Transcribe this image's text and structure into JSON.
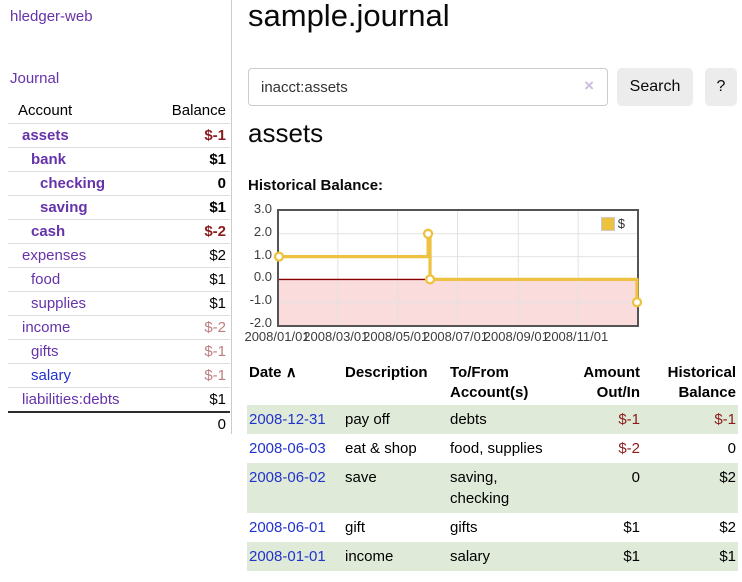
{
  "app": {
    "name": "hledger-web",
    "nav_journal": "Journal"
  },
  "sidebar": {
    "columns": {
      "account": "Account",
      "balance": "Balance"
    },
    "accounts": [
      {
        "name": "assets",
        "balance": "$-1",
        "indent": 1,
        "bold": true,
        "balance_style": "neg-strong",
        "link_style": ""
      },
      {
        "name": "bank",
        "balance": "$1",
        "indent": 2,
        "bold": true,
        "balance_style": "",
        "link_style": ""
      },
      {
        "name": "checking",
        "balance": "0",
        "indent": 3,
        "bold": true,
        "balance_style": "",
        "link_style": ""
      },
      {
        "name": "saving",
        "balance": "$1",
        "indent": 3,
        "bold": true,
        "balance_style": "",
        "link_style": ""
      },
      {
        "name": "cash",
        "balance": "$-2",
        "indent": 2,
        "bold": true,
        "balance_style": "neg-strong",
        "link_style": ""
      },
      {
        "name": "expenses",
        "balance": "$2",
        "indent": 1,
        "bold": false,
        "balance_style": "",
        "link_style": ""
      },
      {
        "name": "food",
        "balance": "$1",
        "indent": 2,
        "bold": false,
        "balance_style": "",
        "link_style": ""
      },
      {
        "name": "supplies",
        "balance": "$1",
        "indent": 2,
        "bold": false,
        "balance_style": "",
        "link_style": ""
      },
      {
        "name": "income",
        "balance": "$-2",
        "indent": 1,
        "bold": false,
        "balance_style": "neg-soft",
        "link_style": ""
      },
      {
        "name": "gifts",
        "balance": "$-1",
        "indent": 2,
        "bold": false,
        "balance_style": "neg-soft",
        "link_style": ""
      },
      {
        "name": "salary",
        "balance": "$-1",
        "indent": 2,
        "bold": false,
        "balance_style": "neg-soft",
        "link_style": "blue"
      },
      {
        "name": "liabilities:debts",
        "balance": "$1",
        "indent": 1,
        "bold": false,
        "balance_style": "",
        "link_style": ""
      }
    ],
    "total": "0"
  },
  "header": {
    "title": "sample.journal"
  },
  "search": {
    "value": "inacct:assets",
    "clear_icon": "×",
    "search_button": "Search",
    "help_button": "?"
  },
  "account_page": {
    "heading": "assets",
    "section_label": "Historical Balance:"
  },
  "chart_data": {
    "type": "line",
    "step": true,
    "title": "Historical Balance:",
    "legend": [
      {
        "label": "$",
        "color": "#EDC240"
      }
    ],
    "series": [
      {
        "name": "$",
        "color": "#EDC240",
        "points": [
          {
            "date": "2008-01-01",
            "day": 0,
            "value": 1
          },
          {
            "date": "2008-06-01",
            "day": 152,
            "value": 2
          },
          {
            "date": "2008-06-03",
            "day": 154,
            "value": 0
          },
          {
            "date": "2008-12-31",
            "day": 365,
            "value": -1
          }
        ]
      }
    ],
    "x_ticks": [
      {
        "day": 0,
        "label": "2008/01/01"
      },
      {
        "day": 60,
        "label": "2008/03/01"
      },
      {
        "day": 121,
        "label": "2008/05/01"
      },
      {
        "day": 182,
        "label": "2008/07/01"
      },
      {
        "day": 244,
        "label": "2008/09/01"
      },
      {
        "day": 305,
        "label": "2008/11/01"
      }
    ],
    "y_ticks": [
      3,
      2,
      1,
      0,
      -1,
      -2
    ],
    "ylim": [
      -2,
      3
    ],
    "xlim_days": [
      0,
      365
    ],
    "grid_on": true,
    "legend_position": "top-right",
    "colors": {
      "grid": "#E2E2E2",
      "zero_line": "#8B0000",
      "negative_region": "#FADCDC",
      "border": "#545454"
    }
  },
  "table": {
    "headers": [
      "Date",
      "Description",
      "To/From Account(s)",
      "Amount Out/In",
      "Historical Balance"
    ],
    "sort_indicator": "∧",
    "rows": [
      {
        "date": "2008-12-31",
        "description": "pay off",
        "accounts": "debts",
        "amount": "$-1",
        "amount_negative": true,
        "balance": "$-1",
        "balance_negative": true
      },
      {
        "date": "2008-06-03",
        "description": "eat & shop",
        "accounts": "food, supplies",
        "amount": "$-2",
        "amount_negative": true,
        "balance": "0",
        "balance_negative": false
      },
      {
        "date": "2008-06-02",
        "description": "save",
        "accounts": "saving, checking",
        "amount": "0",
        "amount_negative": false,
        "balance": "$2",
        "balance_negative": false
      },
      {
        "date": "2008-06-01",
        "description": "gift",
        "accounts": "gifts",
        "amount": "$1",
        "amount_negative": false,
        "balance": "$2",
        "balance_negative": false
      },
      {
        "date": "2008-01-01",
        "description": "income",
        "accounts": "salary",
        "amount": "$1",
        "amount_negative": false,
        "balance": "$1",
        "balance_negative": false
      }
    ]
  },
  "colors": {
    "accent_purple": "#6633AA",
    "link_blue": "#2233CC",
    "negative_strong": "#8B1C1C",
    "negative_soft": "#BE7D7D",
    "stripe_green": "#DFEAD9",
    "chart_line_gold": "#EDC240"
  }
}
